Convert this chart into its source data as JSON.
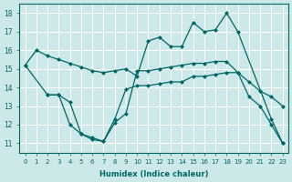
{
  "xlabel": "Humidex (Indice chaleur)",
  "bg_color": "#cce8e8",
  "line_color": "#006666",
  "grid_color": "#ffffff",
  "ylim": [
    10.5,
    18.5
  ],
  "xlim": [
    -0.5,
    23.5
  ],
  "yticks": [
    11,
    12,
    13,
    14,
    15,
    16,
    17,
    18
  ],
  "xticks": [
    0,
    1,
    2,
    3,
    4,
    5,
    6,
    7,
    8,
    9,
    10,
    11,
    12,
    13,
    14,
    15,
    16,
    17,
    18,
    19,
    20,
    21,
    22,
    23
  ],
  "line1_x": [
    0,
    1,
    2,
    3,
    4,
    5,
    6,
    7,
    8,
    9,
    10,
    11,
    12,
    13,
    14,
    15,
    16,
    17,
    18,
    19,
    22,
    23
  ],
  "line1_y": [
    15.2,
    16.0,
    15.7,
    15.5,
    15.3,
    15.1,
    14.9,
    14.8,
    14.9,
    15.0,
    14.6,
    16.5,
    16.7,
    16.2,
    16.2,
    17.5,
    17.0,
    17.1,
    18.0,
    17.0,
    12.3,
    11.0
  ],
  "line2_x": [
    2,
    3,
    4,
    5,
    6,
    7,
    8,
    9,
    10,
    11,
    12,
    13,
    14,
    15,
    16,
    17,
    18,
    19,
    20,
    21,
    22,
    23
  ],
  "line2_y": [
    13.6,
    13.6,
    13.2,
    11.5,
    11.2,
    11.1,
    12.3,
    13.9,
    14.1,
    14.1,
    14.2,
    14.3,
    14.3,
    14.6,
    14.6,
    14.7,
    14.8,
    14.8,
    13.5,
    13.0,
    12.0,
    11.0
  ],
  "line3_x": [
    0,
    2,
    3,
    4,
    5,
    6,
    7,
    8,
    9,
    10,
    11,
    12,
    13,
    14,
    15,
    16,
    17,
    18,
    19,
    20,
    21,
    22,
    23
  ],
  "line3_y": [
    15.2,
    13.6,
    13.6,
    12.0,
    11.5,
    11.3,
    11.1,
    12.1,
    12.6,
    14.9,
    14.9,
    15.0,
    15.1,
    15.2,
    15.3,
    15.3,
    15.4,
    15.4,
    14.8,
    14.3,
    13.8,
    13.5,
    13.0
  ]
}
